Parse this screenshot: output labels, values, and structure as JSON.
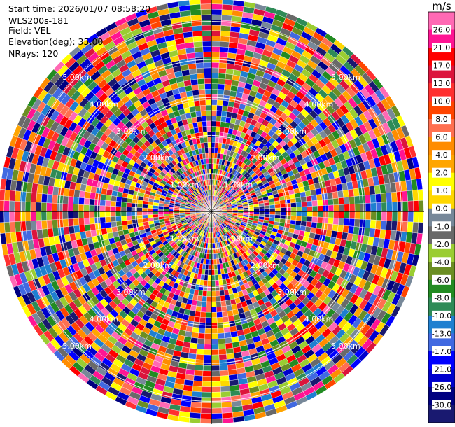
{
  "header": {
    "start_time": "Start time: 2026/01/07 08:58:20",
    "instrument": "WLS200s-181",
    "field": "Field: VEL",
    "elevation": "Elevation(deg): 35.00",
    "nrays": "NRays: 120"
  },
  "chart_data": {
    "type": "heatmap",
    "projection": "polar-ppi",
    "field": "VEL",
    "units": "m/s",
    "n_rays": 120,
    "elevation_deg": 35.0,
    "range_rings_km": [
      1.0,
      2.0,
      3.0,
      4.0,
      5.0
    ],
    "ring_labels": [
      "1.00km",
      "2.00km",
      "3.00km",
      "4.00km",
      "5.00km"
    ],
    "max_range_km": 5.6,
    "colorbar": {
      "title": "m/s",
      "tick_labels": [
        "26.0",
        "21.0",
        "17.0",
        "13.0",
        "10.0",
        "8.0",
        "6.0",
        "4.0",
        "2.0",
        "1.0",
        "0.0",
        "-1.0",
        "-2.0",
        "-4.0",
        "-6.0",
        "-8.0",
        "-10.0",
        "-13.0",
        "-17.0",
        "-21.0",
        "-26.0",
        "-30.0"
      ],
      "colors": [
        "#ff69b4",
        "#ff1493",
        "#ff0000",
        "#dc143c",
        "#ff3030",
        "#ff4500",
        "#ff7050",
        "#ff8c00",
        "#ffa500",
        "#ffff00",
        "#ffd700",
        "#778899",
        "#696969",
        "#9acd32",
        "#6b8e23",
        "#228b22",
        "#2e8b57",
        "#1e7fd0",
        "#4169e1",
        "#0000ff",
        "#0000cd",
        "#000080",
        "#191970"
      ]
    }
  }
}
